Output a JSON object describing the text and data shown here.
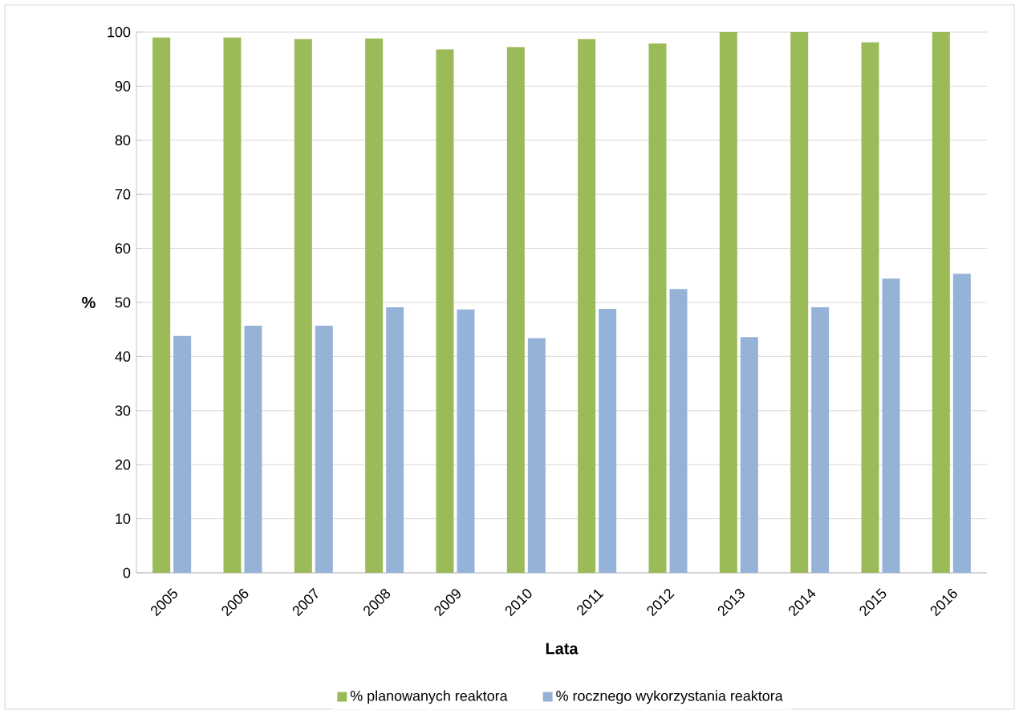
{
  "chart_data": {
    "type": "bar",
    "xlabel": "Lata",
    "ylabel": "%",
    "categories": [
      "2005",
      "2006",
      "2007",
      "2008",
      "2009",
      "2010",
      "2011",
      "2012",
      "2013",
      "2014",
      "2015",
      "2016"
    ],
    "series": [
      {
        "name": "% planowanych reaktora",
        "color": "#9bbb59",
        "values": [
          99,
          99,
          98.7,
          98.8,
          96.8,
          97.2,
          98.7,
          97.9,
          100,
          100,
          98.1,
          100
        ]
      },
      {
        "name": "% rocznego wykorzystania reaktora",
        "color": "#95b3d7",
        "values": [
          43.8,
          45.7,
          45.7,
          49.1,
          48.7,
          43.4,
          48.8,
          52.5,
          43.6,
          49.1,
          54.4,
          55.3
        ]
      }
    ],
    "ylim": [
      0,
      100
    ],
    "yticks": [
      0,
      10,
      20,
      30,
      40,
      50,
      60,
      70,
      80,
      90,
      100
    ],
    "grid": "y",
    "legend": "bottom"
  }
}
